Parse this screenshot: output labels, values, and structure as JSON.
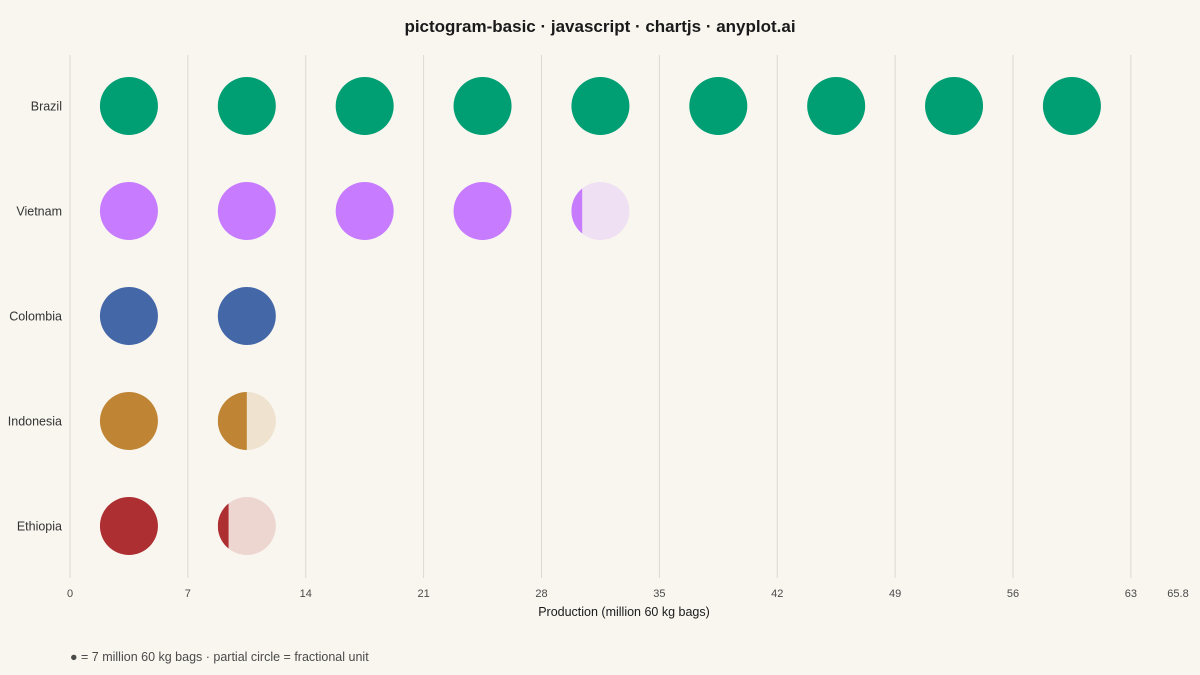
{
  "title": "pictogram-basic · javascript · chartjs · anyplot.ai",
  "caption": "● = 7 million 60 kg bags  ·  partial circle = fractional unit",
  "chart_data": {
    "type": "pictogram",
    "title": "pictogram-basic · javascript · chartjs · anyplot.ai",
    "xlabel": "Production (million 60 kg bags)",
    "ylabel": "",
    "unit_value": 7,
    "xlim": [
      0,
      65.8
    ],
    "x_ticks": [
      "0",
      "7",
      "14",
      "21",
      "28",
      "35",
      "42",
      "49",
      "56",
      "63",
      "65.8"
    ],
    "grid": true,
    "categories": [
      "Brazil",
      "Vietnam",
      "Colombia",
      "Indonesia",
      "Ethiopia"
    ],
    "values": [
      63,
      29.3,
      14,
      10.5,
      8.3
    ],
    "colors": [
      "#009e73",
      "#c77cff",
      "#4467a8",
      "#bf8535",
      "#ad2f32"
    ],
    "faded_colors": [
      "#b3e2d5",
      "#efe0f3",
      "#c7d1e5",
      "#efe2cf",
      "#edd5d0"
    ]
  }
}
